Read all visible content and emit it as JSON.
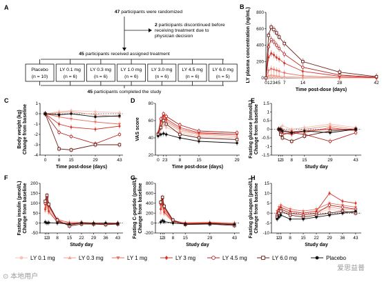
{
  "panel_labels": [
    "A",
    "B",
    "C",
    "D",
    "E",
    "F",
    "G",
    "H"
  ],
  "flowchart": {
    "randomized": [
      "47",
      " participants were randomized"
    ],
    "discontinued": [
      "2",
      " participants discontinued before",
      "receiving treatment due to",
      "physician decision"
    ],
    "received": [
      "45",
      " participants received assigned treatment"
    ],
    "arms": [
      {
        "name": "Placebo",
        "n": "(n = 10)"
      },
      {
        "name": "LY 0.1 mg",
        "n": "(n = 6)"
      },
      {
        "name": "LY 0.3 mg",
        "n": "(n = 6)"
      },
      {
        "name": "LY 1.0 mg",
        "n": "(n = 6)"
      },
      {
        "name": "LY 3.0 mg",
        "n": "(n = 6)"
      },
      {
        "name": "LY 4.5 mg",
        "n": "(n = 6)"
      },
      {
        "name": "LY 6.0 mg",
        "n": "(n = 5)"
      }
    ],
    "completed": [
      "45",
      " participants completed the study"
    ]
  },
  "legend": {
    "items": [
      {
        "label": "LY 0.1 mg",
        "color": "#f6c3b6",
        "marker": "circle"
      },
      {
        "label": "LY 0.3 mg",
        "color": "#f0a090",
        "marker": "triangle-up"
      },
      {
        "label": "LY 1 mg",
        "color": "#e86f5f",
        "marker": "triangle-down"
      },
      {
        "label": "LY 3 mg",
        "color": "#d6372c",
        "marker": "diamond"
      },
      {
        "label": "LY 4.5 mg",
        "color": "#b52020",
        "marker": "circle-open"
      },
      {
        "label": "LY 6.0 mg",
        "color": "#6b1a12",
        "marker": "square-open"
      },
      {
        "label": "Placebo",
        "color": "#111111",
        "marker": "circle"
      }
    ]
  },
  "watermark": "爱思益普",
  "watermark_left": "⊙ 本地用户",
  "chart_data": [
    {
      "id": "B",
      "type": "line",
      "ylabel": [
        "LY plasma concentration (ng/mL)"
      ],
      "xlabel": "Time post-dose (days)",
      "xlim": [
        0,
        42
      ],
      "ylim": [
        0,
        800
      ],
      "xticks": [
        0,
        1,
        2,
        3,
        4,
        5,
        7,
        14,
        28,
        42
      ],
      "xticklabels": [
        "0",
        "1",
        "2",
        "3",
        "4",
        "5",
        "7",
        "14",
        "28",
        "42"
      ],
      "yticks": [
        0,
        200,
        400,
        600,
        800
      ],
      "x": [
        0,
        1,
        2,
        3,
        4,
        5,
        7,
        14,
        28,
        42
      ],
      "series": [
        {
          "dose": "0.1",
          "values": [
            0,
            10,
            12,
            10,
            8,
            7,
            5,
            2,
            0,
            0
          ]
        },
        {
          "dose": "0.3",
          "values": [
            0,
            30,
            35,
            30,
            26,
            22,
            16,
            7,
            2,
            0
          ]
        },
        {
          "dose": "1",
          "values": [
            0,
            90,
            110,
            100,
            90,
            80,
            60,
            25,
            6,
            1
          ]
        },
        {
          "dose": "3",
          "values": [
            0,
            250,
            300,
            280,
            250,
            230,
            180,
            80,
            20,
            4
          ]
        },
        {
          "dose": "4.5",
          "values": [
            0,
            380,
            470,
            440,
            400,
            360,
            290,
            130,
            35,
            8
          ]
        },
        {
          "dose": "6.0",
          "values": [
            0,
            520,
            620,
            590,
            550,
            500,
            420,
            200,
            70,
            15
          ]
        }
      ]
    },
    {
      "id": "C",
      "type": "line",
      "ylabel": [
        "Body weight (kg)",
        "Change from baseline"
      ],
      "xlabel": "Time post-dose (days)",
      "xlim": [
        -3,
        45
      ],
      "ylim": [
        -4,
        1
      ],
      "xticks": [
        0,
        8,
        15,
        29,
        43
      ],
      "xticklabels": [
        "0",
        "8",
        "15",
        "29",
        "43"
      ],
      "yticks": [
        -4,
        -3,
        -2,
        -1,
        0,
        1
      ],
      "x": [
        0,
        8,
        15,
        29,
        43
      ],
      "series": [
        {
          "dose": "0.1",
          "values": [
            0,
            0.2,
            0.3,
            0.2,
            0.1
          ]
        },
        {
          "dose": "0.3",
          "values": [
            0,
            0.1,
            0.2,
            -0.1,
            -0.3
          ]
        },
        {
          "dose": "1",
          "values": [
            0,
            -0.3,
            -0.5,
            -0.8,
            -1.0
          ]
        },
        {
          "dose": "3",
          "values": [
            0,
            -1.0,
            -1.3,
            -1.5,
            -1.2
          ]
        },
        {
          "dose": "4.5",
          "values": [
            0,
            -1.8,
            -2.2,
            -2.9,
            -2.0
          ]
        },
        {
          "dose": "6.0",
          "values": [
            0,
            -3.4,
            -3.5,
            -3.0,
            -3.0
          ]
        },
        {
          "dose": "placebo",
          "values": [
            0,
            -0.1,
            0.0,
            -0.3,
            -0.2
          ]
        }
      ]
    },
    {
      "id": "D",
      "type": "line",
      "ylabel": [
        "VAS score"
      ],
      "xlabel": "Time post-dose (days)",
      "xlim": [
        -1,
        30
      ],
      "ylim": [
        20,
        80
      ],
      "xticks": [
        0,
        2,
        3,
        8,
        15,
        29
      ],
      "xticklabels": [
        "0",
        "2",
        "3",
        "8",
        "15",
        "29"
      ],
      "yticks": [
        20,
        40,
        60,
        80
      ],
      "x": [
        0,
        1,
        2,
        3,
        8,
        15,
        29
      ],
      "series": [
        {
          "dose": "0.1",
          "values": [
            44,
            50,
            55,
            52,
            46,
            42,
            40
          ]
        },
        {
          "dose": "0.3",
          "values": [
            45,
            55,
            62,
            58,
            48,
            44,
            42
          ]
        },
        {
          "dose": "1",
          "values": [
            44,
            58,
            64,
            60,
            50,
            45,
            44
          ]
        },
        {
          "dose": "3",
          "values": [
            46,
            60,
            66,
            62,
            52,
            46,
            44
          ]
        },
        {
          "dose": "4.5",
          "values": [
            45,
            62,
            68,
            65,
            55,
            48,
            46
          ]
        },
        {
          "dose": "6.0",
          "values": [
            44,
            52,
            60,
            56,
            44,
            40,
            38
          ]
        },
        {
          "dose": "placebo",
          "values": [
            42,
            44,
            45,
            44,
            40,
            36,
            34
          ]
        }
      ]
    },
    {
      "id": "E",
      "type": "line",
      "ylabel": [
        "Fasting glucose (mmol/L)",
        "Change from baseline"
      ],
      "xlabel": "Study day",
      "xlim": [
        -3,
        46
      ],
      "ylim": [
        -1.5,
        1.5
      ],
      "xticks": [
        1,
        2,
        3,
        8,
        15,
        29,
        43
      ],
      "xticklabels": [
        "1",
        "2",
        "3",
        "8",
        "15",
        "29",
        "43"
      ],
      "yticks": [
        -1.5,
        -1.0,
        -0.5,
        0,
        0.5,
        1.0,
        1.5
      ],
      "x": [
        1,
        2,
        3,
        8,
        15,
        29,
        43
      ],
      "series": [
        {
          "dose": "0.1",
          "values": [
            0,
            0.1,
            0.2,
            0.0,
            0.1,
            0.3,
            0.1
          ]
        },
        {
          "dose": "0.3",
          "values": [
            0,
            -0.1,
            0.0,
            -0.2,
            0.0,
            0.2,
            0.0
          ]
        },
        {
          "dose": "1",
          "values": [
            0,
            0.0,
            -0.1,
            -0.1,
            -0.2,
            0.1,
            -0.1
          ]
        },
        {
          "dose": "3",
          "values": [
            0,
            -0.1,
            -0.2,
            -0.3,
            -0.1,
            0.0,
            0.0
          ]
        },
        {
          "dose": "4.5",
          "values": [
            0,
            -0.2,
            -0.3,
            -0.2,
            -0.3,
            -0.7,
            -0.2
          ]
        },
        {
          "dose": "6.0",
          "values": [
            0,
            -0.3,
            -0.5,
            -0.7,
            -0.4,
            -0.1,
            0.0
          ]
        },
        {
          "dose": "placebo",
          "values": [
            0,
            0.0,
            -0.1,
            -0.2,
            -0.1,
            -0.2,
            0.0
          ]
        }
      ]
    },
    {
      "id": "F",
      "type": "line",
      "ylabel": [
        "Fasting insulin (pmol/L)",
        "Change from baseline"
      ],
      "xlabel": "Study day",
      "xlim": [
        -2,
        46
      ],
      "ylim": [
        -50,
        200
      ],
      "xticks": [
        1,
        2,
        3,
        8,
        15,
        22,
        29,
        36,
        43
      ],
      "xticklabels": [
        "1",
        "2",
        "3",
        "8",
        "15",
        "22",
        "29",
        "36",
        "43"
      ],
      "yticks": [
        -50,
        0,
        50,
        100,
        150,
        200
      ],
      "x": [
        1,
        2,
        3,
        8,
        15,
        22,
        29,
        36,
        43
      ],
      "series": [
        {
          "dose": "0.1",
          "values": [
            60,
            80,
            50,
            10,
            0,
            5,
            0,
            0,
            2
          ]
        },
        {
          "dose": "0.3",
          "values": [
            80,
            110,
            70,
            15,
            5,
            5,
            2,
            0,
            0
          ]
        },
        {
          "dose": "1",
          "values": [
            90,
            120,
            80,
            20,
            0,
            2,
            0,
            -2,
            0
          ]
        },
        {
          "dose": "3",
          "values": [
            70,
            100,
            60,
            5,
            -5,
            0,
            -3,
            -5,
            -2
          ]
        },
        {
          "dose": "4.5",
          "values": [
            100,
            130,
            90,
            10,
            -10,
            0,
            -5,
            -5,
            -3
          ]
        },
        {
          "dose": "6.0",
          "values": [
            110,
            140,
            95,
            15,
            -15,
            -5,
            -5,
            -8,
            -5
          ]
        },
        {
          "dose": "placebo",
          "values": [
            5,
            0,
            2,
            0,
            -5,
            0,
            -2,
            0,
            -3
          ]
        }
      ]
    },
    {
      "id": "G",
      "type": "line",
      "ylabel": [
        "Fasting C-peptide (pmol/L)",
        "Change from baseline"
      ],
      "xlabel": "Study day",
      "xlim": [
        -2,
        46
      ],
      "ylim": [
        -200,
        800
      ],
      "xticks": [
        1,
        2,
        3,
        8,
        15,
        29,
        43
      ],
      "xticklabels": [
        "1",
        "2",
        "3",
        "8",
        "15",
        "29",
        "43"
      ],
      "yticks": [
        -200,
        0,
        200,
        400,
        600,
        800
      ],
      "x": [
        1,
        2,
        3,
        8,
        15,
        29,
        43
      ],
      "series": [
        {
          "dose": "0.1",
          "values": [
            200,
            300,
            180,
            20,
            0,
            10,
            0
          ]
        },
        {
          "dose": "0.3",
          "values": [
            300,
            400,
            250,
            40,
            10,
            20,
            0
          ]
        },
        {
          "dose": "1",
          "values": [
            350,
            450,
            280,
            50,
            0,
            10,
            -10
          ]
        },
        {
          "dose": "3",
          "values": [
            280,
            380,
            220,
            30,
            -10,
            0,
            -20
          ]
        },
        {
          "dose": "4.5",
          "values": [
            400,
            500,
            320,
            40,
            -20,
            -10,
            -30
          ]
        },
        {
          "dose": "6.0",
          "values": [
            420,
            520,
            340,
            60,
            -30,
            -20,
            -50
          ]
        },
        {
          "dose": "placebo",
          "values": [
            20,
            50,
            30,
            0,
            -20,
            -10,
            -30
          ]
        }
      ]
    },
    {
      "id": "H",
      "type": "line",
      "ylabel": [
        "Fasting glucagon (pmol/L)",
        "Change from baseline"
      ],
      "xlabel": "Study day",
      "xlim": [
        -2,
        46
      ],
      "ylim": [
        -10,
        15
      ],
      "xticks": [
        1,
        2,
        3,
        8,
        15,
        22,
        29,
        36,
        43
      ],
      "xticklabels": [
        "1",
        "2",
        "3",
        "8",
        "15",
        "22",
        "29",
        "36",
        "43"
      ],
      "yticks": [
        -10,
        -5,
        0,
        5,
        10,
        15
      ],
      "x": [
        1,
        2,
        3,
        8,
        15,
        22,
        29,
        36,
        43
      ],
      "series": [
        {
          "dose": "0.1",
          "values": [
            0,
            1,
            2,
            0,
            -1,
            0,
            2,
            1,
            1
          ]
        },
        {
          "dose": "0.3",
          "values": [
            0,
            2,
            3,
            1,
            0,
            1,
            3,
            2,
            2
          ]
        },
        {
          "dose": "1",
          "values": [
            1,
            3,
            4,
            2,
            1,
            2,
            5,
            4,
            3
          ]
        },
        {
          "dose": "3",
          "values": [
            0,
            2,
            3,
            1,
            0,
            1,
            10,
            6,
            5
          ]
        },
        {
          "dose": "4.5",
          "values": [
            -1,
            1,
            2,
            0,
            -1,
            0,
            4,
            3,
            2
          ]
        },
        {
          "dose": "6.0",
          "values": [
            -2,
            0,
            1,
            -1,
            -2,
            -1,
            0,
            1,
            0
          ]
        },
        {
          "dose": "placebo",
          "values": [
            -3,
            -2,
            -1,
            -3,
            -3,
            -2,
            -1,
            0,
            1
          ]
        }
      ]
    }
  ]
}
